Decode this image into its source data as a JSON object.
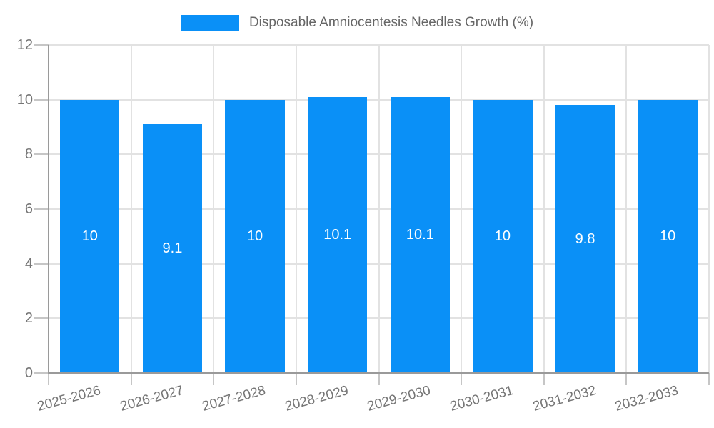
{
  "legend": {
    "label": "Disposable Amniocentesis Needles Growth (%)"
  },
  "chart_data": {
    "type": "bar",
    "title": "Disposable Amniocentesis Needles Growth (%)",
    "categories": [
      "2025-2026",
      "2026-2027",
      "2027-2028",
      "2028-2029",
      "2029-2030",
      "2030-2031",
      "2031-2032",
      "2032-2033"
    ],
    "values": [
      10,
      9.1,
      10,
      10.1,
      10.1,
      10,
      9.8,
      10
    ],
    "value_labels": [
      "10",
      "9.1",
      "10",
      "10.1",
      "10.1",
      "10",
      "9.8",
      "10"
    ],
    "xlabel": "",
    "ylabel": "",
    "ylim": [
      0,
      12
    ],
    "yticks": [
      0,
      2,
      4,
      6,
      8,
      10,
      12
    ],
    "grid": true,
    "legend_position": "top",
    "bar_color": "#0a90f7",
    "bar_label_color": "#ffffff",
    "axis_label_color": "#757575",
    "legend_text_color": "#666666",
    "gridline_color": "#e2e2e2",
    "axis_line_color": "#9a9a9a"
  }
}
